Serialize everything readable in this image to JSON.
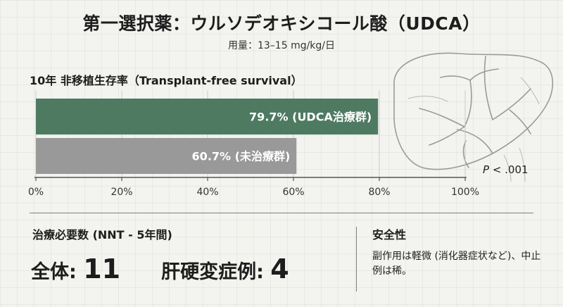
{
  "header": {
    "title": "第一選択薬：ウルソデオキシコール酸（UDCA）",
    "dose": "用量：13–15 mg/kg/日"
  },
  "chart_data": {
    "type": "bar",
    "orientation": "horizontal",
    "title": "10年 非移植生存率（Transplant-free survival）",
    "categories": [
      "UDCA治療群",
      "未治療群"
    ],
    "values": [
      79.7,
      60.7
    ],
    "value_labels": [
      "79.7% (UDCA治療群)",
      "60.7% (未治療群)"
    ],
    "colors": [
      "#4e7a62",
      "#999999"
    ],
    "xlim": [
      0,
      100
    ],
    "x_ticks": [
      0,
      20,
      40,
      60,
      80,
      100
    ],
    "x_tick_labels": [
      "0%",
      "20%",
      "40%",
      "60%",
      "80%",
      "100%"
    ],
    "grid": true,
    "annotation": "P < .001"
  },
  "nnt": {
    "title": "治療必要数 (NNT - 5年間)",
    "overall_label": "全体: ",
    "overall_value": "11",
    "cirrhosis_label": "肝硬変症例: ",
    "cirrhosis_value": "4"
  },
  "safety": {
    "title": "安全性",
    "text": "副作用は軽微 (消化器症状など)、中止例は稀。"
  },
  "illustration": {
    "icon": "liver-illustration"
  }
}
